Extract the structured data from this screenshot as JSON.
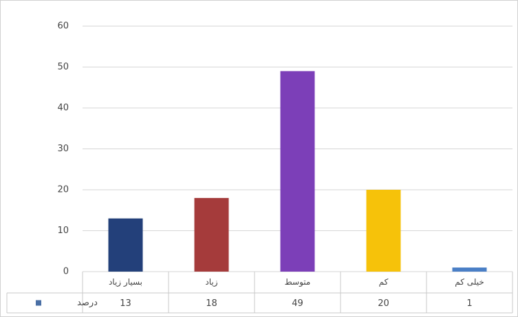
{
  "chart_data": {
    "type": "bar",
    "categories": [
      "بسیار زیاد",
      "زیاد",
      "متوسط",
      "کم",
      "خیلی کم"
    ],
    "series": [
      {
        "name": "درصد",
        "color": "#4a6fa5",
        "values": [
          13,
          18,
          49,
          20,
          1
        ],
        "colors": [
          "#23407a",
          "#a53b3b",
          "#7c3fb8",
          "#f6c20a",
          "#4a7fc6"
        ]
      }
    ],
    "ylim": [
      0,
      60
    ],
    "yticks": [
      0,
      10,
      20,
      30,
      40,
      50,
      60
    ],
    "grid": true
  }
}
